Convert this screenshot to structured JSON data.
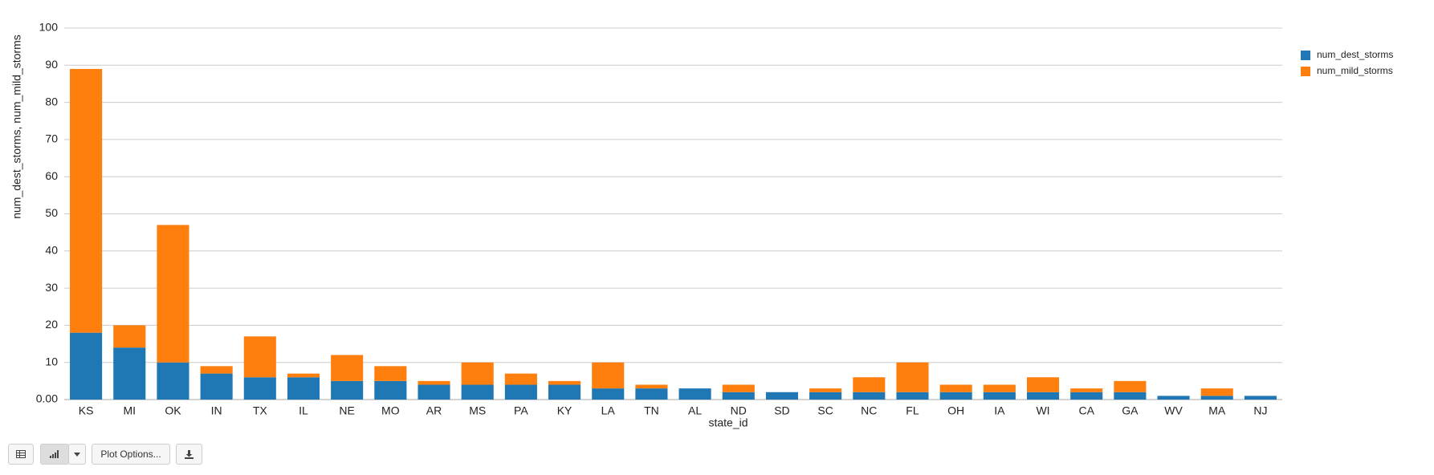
{
  "chart_data": {
    "type": "stacked_bar",
    "xlabel": "state_id",
    "ylabel": "num_dest_storms, num_mild_storms",
    "categories": [
      "KS",
      "MI",
      "OK",
      "IN",
      "TX",
      "IL",
      "NE",
      "MO",
      "AR",
      "MS",
      "PA",
      "KY",
      "LA",
      "TN",
      "AL",
      "ND",
      "SD",
      "SC",
      "NC",
      "FL",
      "OH",
      "IA",
      "WI",
      "CA",
      "GA",
      "WV",
      "MA",
      "NJ"
    ],
    "series": [
      {
        "name": "num_dest_storms",
        "color": "#1f77b4",
        "values": [
          18,
          14,
          10,
          7,
          6,
          6,
          5,
          5,
          4,
          4,
          4,
          4,
          3,
          3,
          3,
          2,
          2,
          2,
          2,
          2,
          2,
          2,
          2,
          2,
          2,
          1,
          1,
          1
        ]
      },
      {
        "name": "num_mild_storms",
        "color": "#ff7f0e",
        "values": [
          71,
          6,
          37,
          2,
          11,
          1,
          7,
          4,
          1,
          6,
          3,
          1,
          7,
          1,
          0,
          2,
          0,
          1,
          4,
          8,
          2,
          2,
          4,
          1,
          3,
          0,
          2,
          0
        ]
      }
    ],
    "ylim": [
      0,
      100
    ],
    "yticks": [
      {
        "value": 0,
        "label": "0.00"
      },
      10,
      20,
      30,
      40,
      50,
      60,
      70,
      80,
      90,
      100
    ],
    "grid": true,
    "legend": "right"
  },
  "toolbar": {
    "plot_options": "Plot Options..."
  }
}
